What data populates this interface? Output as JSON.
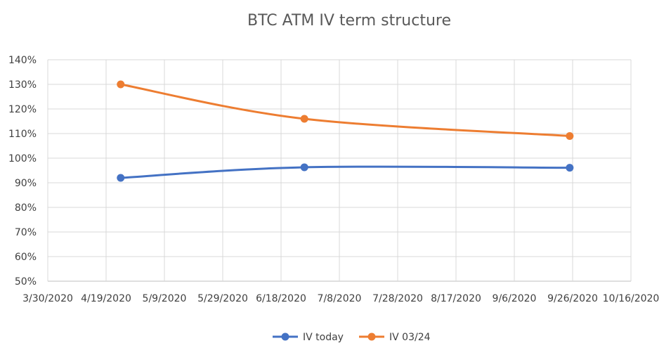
{
  "chart_data": {
    "type": "line",
    "title": "BTC ATM IV term structure",
    "xlabel": "",
    "ylabel": "",
    "x_axis": {
      "scale": "date",
      "min": "2020-03-30",
      "max": "2020-10-16",
      "tick_labels": [
        "3/30/2020",
        "4/19/2020",
        "5/9/2020",
        "5/29/2020",
        "6/18/2020",
        "7/8/2020",
        "7/28/2020",
        "8/17/2020",
        "9/6/2020",
        "9/26/2020",
        "10/16/2020"
      ]
    },
    "y_axis": {
      "min": 0.5,
      "max": 1.4,
      "step": 0.1,
      "tick_labels": [
        "50%",
        "60%",
        "70%",
        "80%",
        "90%",
        "100%",
        "110%",
        "120%",
        "130%",
        "140%"
      ]
    },
    "grid": true,
    "smoothed": true,
    "legend_position": "bottom",
    "series": [
      {
        "name": "IV today",
        "color": "#4472c4",
        "x": [
          "2020-04-24",
          "2020-06-26",
          "2020-09-25"
        ],
        "y": [
          0.92,
          0.963,
          0.961
        ]
      },
      {
        "name": "IV 03/24",
        "color": "#ed7d31",
        "x": [
          "2020-04-24",
          "2020-06-26",
          "2020-09-25"
        ],
        "y": [
          1.3,
          1.16,
          1.09
        ]
      }
    ]
  }
}
